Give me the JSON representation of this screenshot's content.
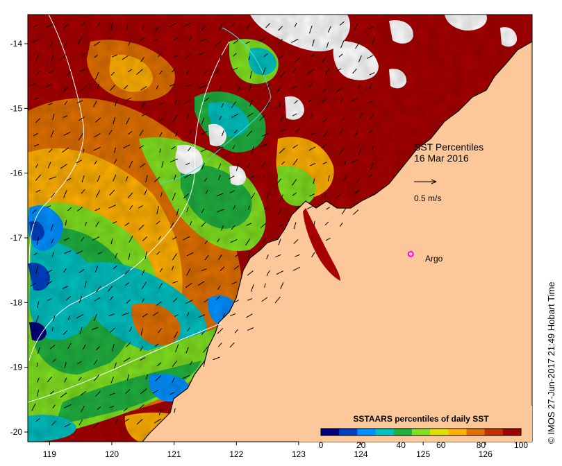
{
  "map": {
    "title": "SST Percentiles",
    "date": "16 Mar 2016",
    "vector_scale_label": "0.5 m/s",
    "argo_label": "Argo",
    "credit": "© IMOS 27-Jun-2017 21:49 Hobart Time",
    "land_color": "#fcc89a",
    "x_ticks": [
      "119",
      "120",
      "121",
      "122",
      "123",
      "124",
      "125",
      "126"
    ],
    "y_ticks": [
      "-14",
      "-15",
      "-16",
      "-17",
      "-18",
      "-19",
      "-20"
    ],
    "lon_range": [
      118.65,
      126.75
    ],
    "lat_range": [
      -20.15,
      -13.55
    ],
    "argo_position": {
      "lon": 124.8,
      "lat": -17.25
    },
    "colorbar": {
      "title": "SSTAARS percentiles of daily SST",
      "tick_labels": [
        "0",
        "20",
        "40",
        "60",
        "80",
        "100"
      ],
      "colors": [
        "#00007f",
        "#0040c0",
        "#0090ff",
        "#00c0c0",
        "#20b040",
        "#80e020",
        "#e0e000",
        "#ffb000",
        "#e07000",
        "#c03000",
        "#a00000"
      ]
    }
  }
}
